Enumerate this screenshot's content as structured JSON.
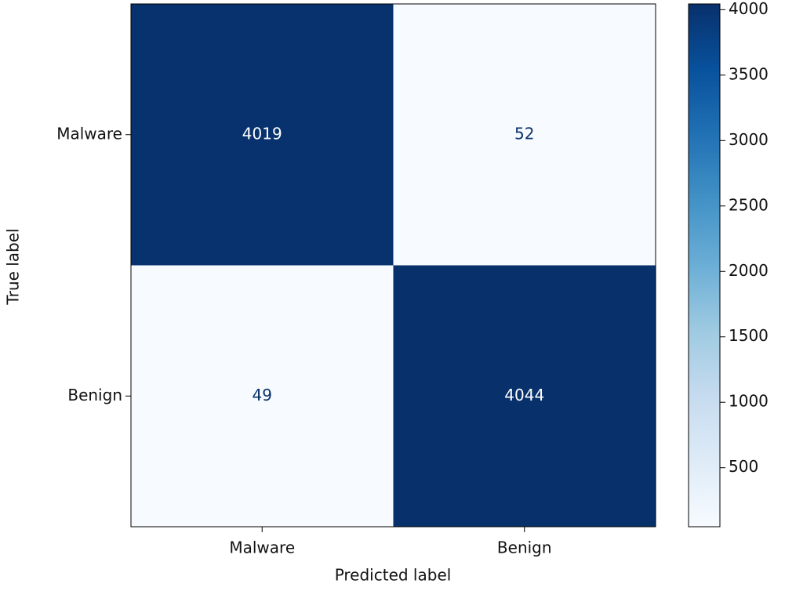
{
  "chart_data": {
    "type": "heatmap",
    "xlabel": "Predicted label",
    "ylabel": "True label",
    "x_categories": [
      "Malware",
      "Benign"
    ],
    "y_categories": [
      "Malware",
      "Benign"
    ],
    "values": [
      [
        4019,
        52
      ],
      [
        49,
        4044
      ]
    ],
    "colormap": "Blues",
    "colorbar_lim": [
      49,
      4044
    ],
    "colorbar_ticks": [
      500,
      1000,
      1500,
      2000,
      2500,
      3000,
      3500,
      4000
    ]
  }
}
